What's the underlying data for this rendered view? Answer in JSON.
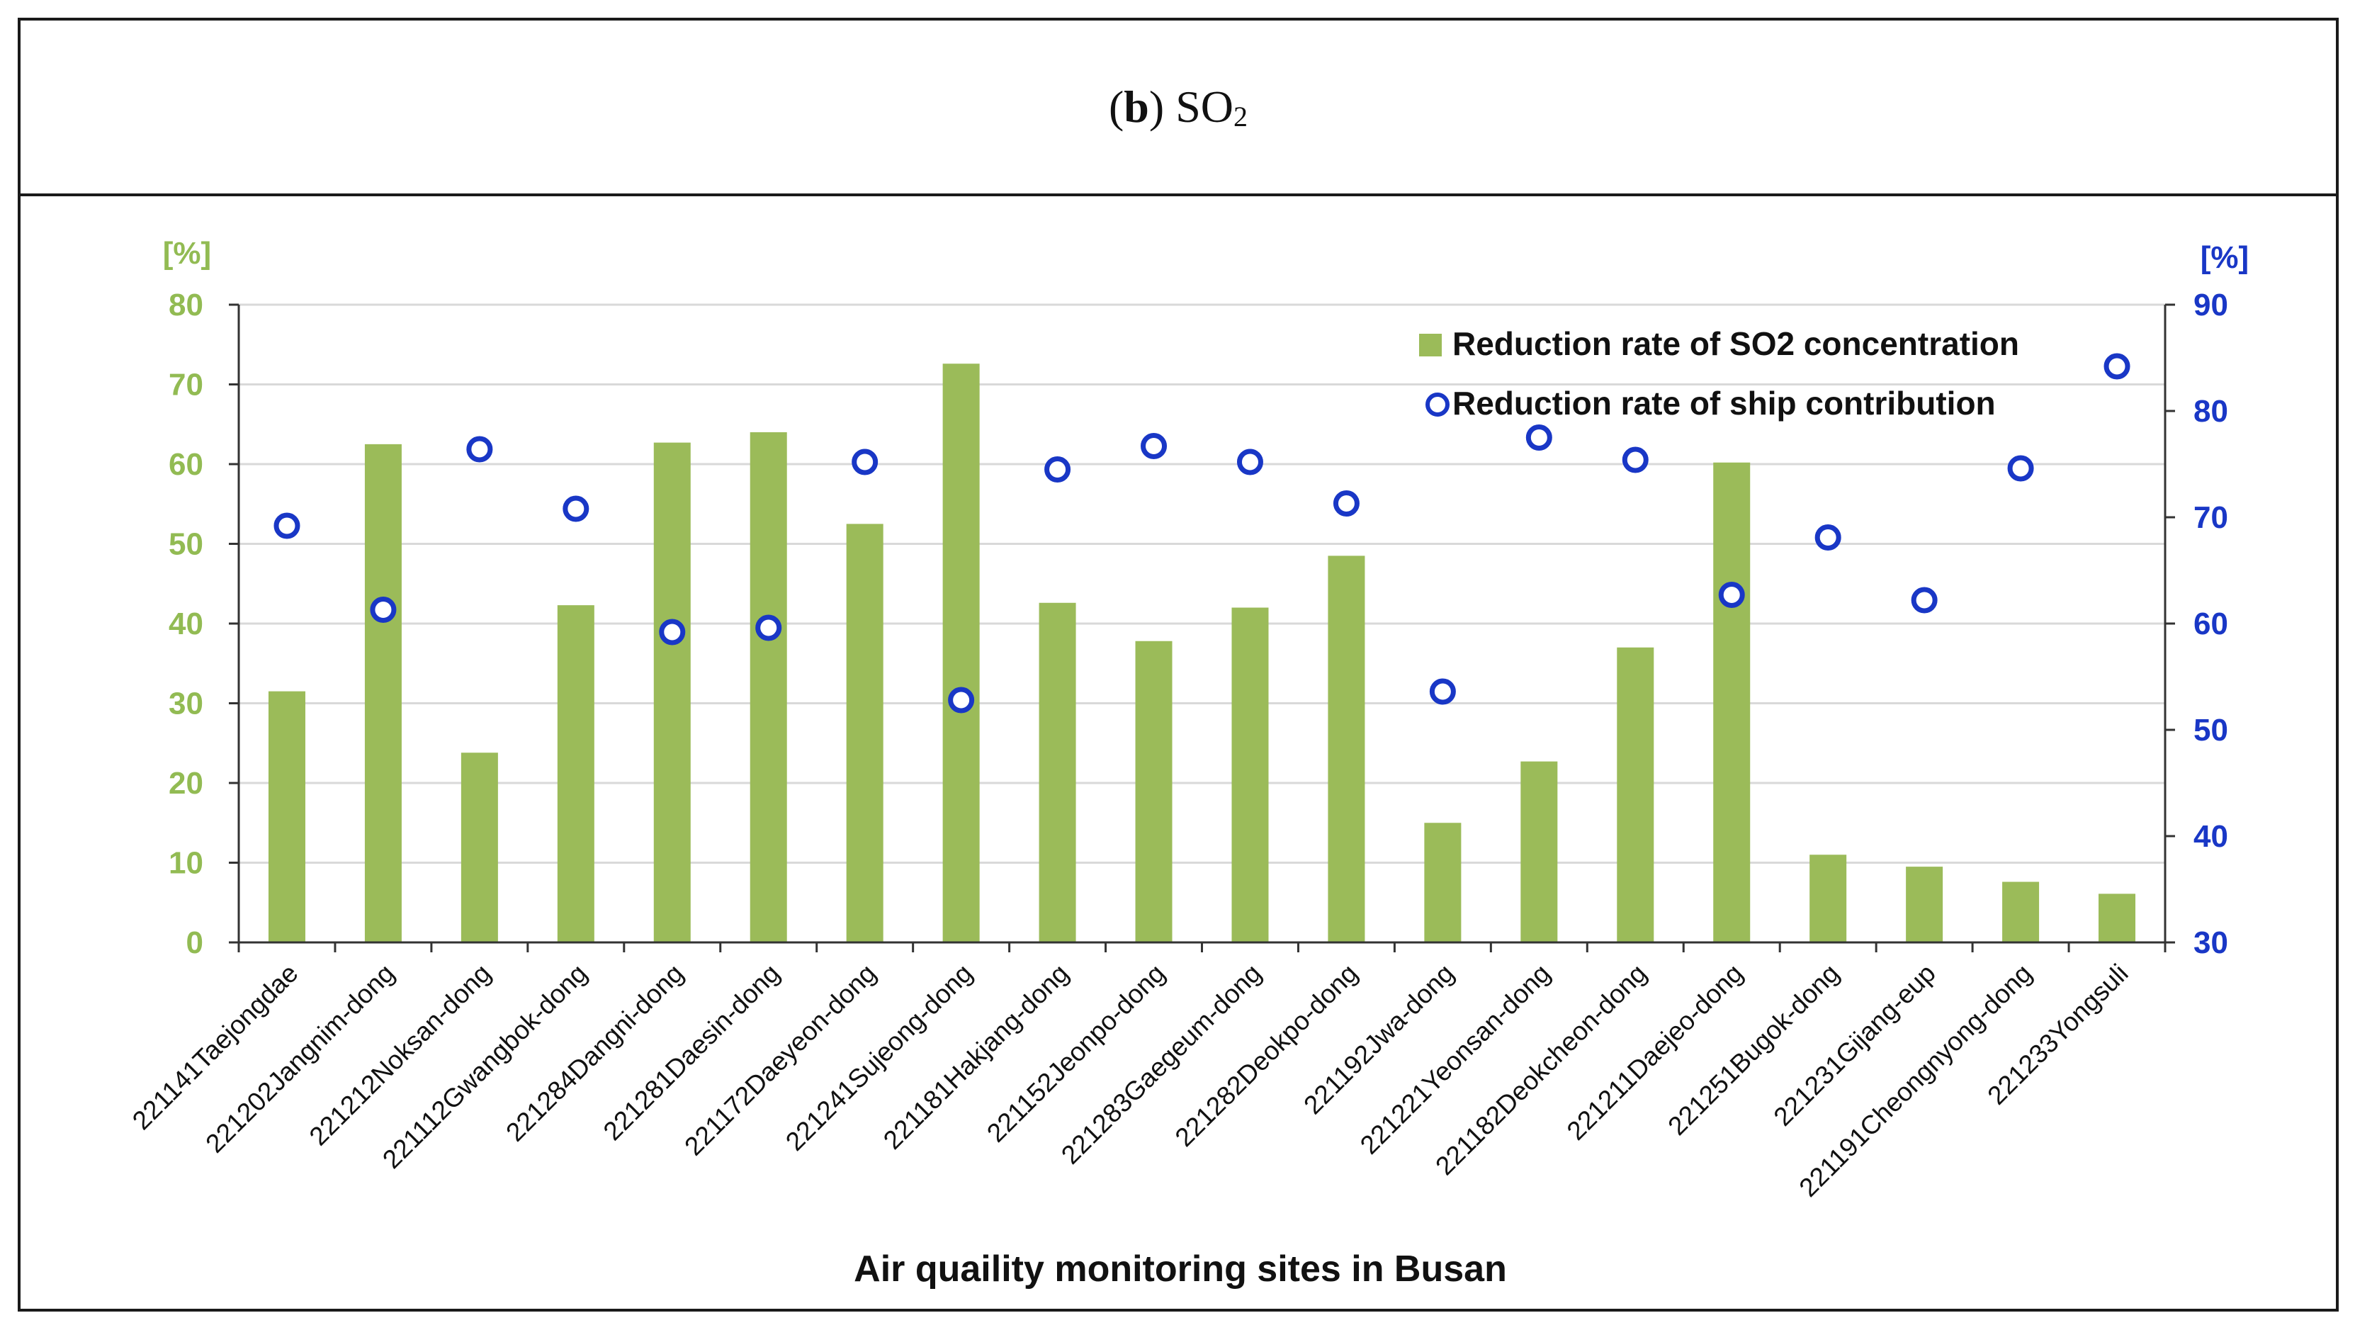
{
  "chart_data": {
    "type": "bar",
    "title_prefix": "b",
    "title_main": "SO",
    "title_sub": "2",
    "xlabel": "Air quaility monitoring sites in Busan",
    "ylabel_left": "[%]",
    "ylabel_right": "[%]",
    "ylim_left": [
      0,
      80
    ],
    "ylim_right": [
      30,
      90
    ],
    "yticks_left": [
      0,
      10,
      20,
      30,
      40,
      50,
      60,
      70,
      80
    ],
    "yticks_right": [
      30,
      40,
      50,
      60,
      70,
      80,
      90
    ],
    "grid": true,
    "legend_position": "top-right",
    "categories": [
      "221141Taejongdae",
      "221202Jangnim-dong",
      "221212Noksan-dong",
      "221112Gwangbok-dong",
      "221284Dangni-dong",
      "221281Daesin-dong",
      "221172Daeyeon-dong",
      "221241Sujeong-dong",
      "221181Hakjang-dong",
      "221152Jeonpo-dong",
      "221283Gaegeum-dong",
      "221282Deokpo-dong",
      "221192Jwa-dong",
      "221221Yeonsan-dong",
      "221182Deokcheon-dong",
      "221211Daejeo-dong",
      "221251Bugok-dong",
      "221231Gijang-eup",
      "221191Cheongnyong-dong",
      "221233Yongsuli"
    ],
    "series": [
      {
        "name": "Reduction rate of SO2 concentration",
        "kind": "bar",
        "axis": "left",
        "color": "#9bbb59",
        "values": [
          31.5,
          62.5,
          23.8,
          42.3,
          62.7,
          64.0,
          52.5,
          72.6,
          42.6,
          37.8,
          42.0,
          48.5,
          15.0,
          22.7,
          37.0,
          60.2,
          11.0,
          9.5,
          7.6,
          6.1
        ]
      },
      {
        "name": "Reduction rate of ship contribution",
        "kind": "scatter",
        "axis": "right",
        "color": "#1937c6",
        "values": [
          69.2,
          61.3,
          76.4,
          70.8,
          59.2,
          59.6,
          75.2,
          52.8,
          74.5,
          76.7,
          75.2,
          71.3,
          53.6,
          77.5,
          75.4,
          62.7,
          68.1,
          62.2,
          74.6,
          84.2
        ]
      }
    ]
  }
}
